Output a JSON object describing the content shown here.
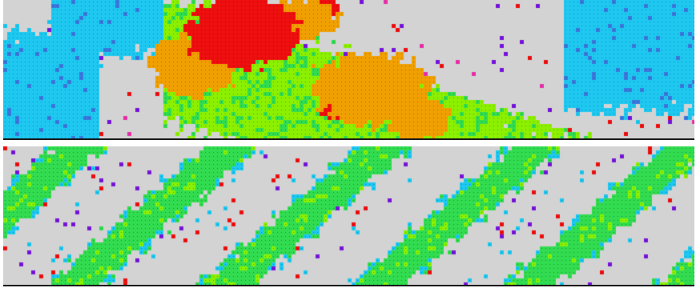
{
  "simulations": [
    {
      "id": "top",
      "phase": "clustered-domains",
      "empty_color": "#d3d3d3",
      "species": [
        {
          "name": "cyan",
          "color": "#1ec8f0"
        },
        {
          "name": "blue",
          "color": "#3c78dc"
        },
        {
          "name": "lime",
          "color": "#8cf000"
        },
        {
          "name": "green",
          "color": "#32dc50"
        },
        {
          "name": "orange",
          "color": "#f0a000"
        },
        {
          "name": "red",
          "color": "#ee0f0f"
        },
        {
          "name": "purple",
          "color": "#7814dc"
        },
        {
          "name": "magenta",
          "color": "#e632aa"
        }
      ]
    },
    {
      "id": "bottom",
      "phase": "diagonal-stripes",
      "empty_color": "#d3d3d3",
      "species": [
        {
          "name": "green",
          "color": "#32dc50"
        },
        {
          "name": "lime",
          "color": "#8cf000"
        },
        {
          "name": "cyan",
          "color": "#1ec8f0"
        },
        {
          "name": "red",
          "color": "#ee0f0f"
        },
        {
          "name": "purple",
          "color": "#7814dc"
        }
      ]
    }
  ]
}
